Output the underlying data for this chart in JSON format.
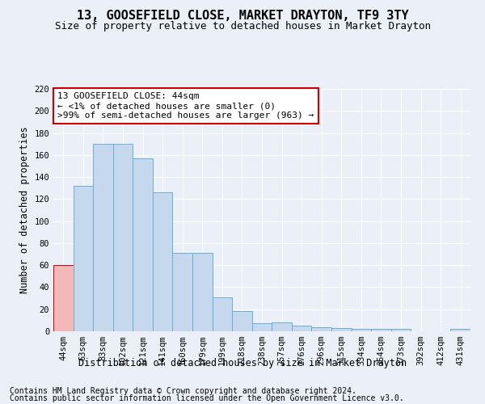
{
  "title": "13, GOOSEFIELD CLOSE, MARKET DRAYTON, TF9 3TY",
  "subtitle": "Size of property relative to detached houses in Market Drayton",
  "xlabel": "Distribution of detached houses by size in Market Drayton",
  "ylabel": "Number of detached properties",
  "categories": [
    "44sqm",
    "63sqm",
    "83sqm",
    "102sqm",
    "121sqm",
    "141sqm",
    "160sqm",
    "179sqm",
    "199sqm",
    "218sqm",
    "238sqm",
    "257sqm",
    "276sqm",
    "296sqm",
    "315sqm",
    "334sqm",
    "354sqm",
    "373sqm",
    "392sqm",
    "412sqm",
    "431sqm"
  ],
  "values": [
    60,
    132,
    170,
    170,
    157,
    126,
    71,
    71,
    31,
    18,
    7,
    8,
    5,
    4,
    3,
    2,
    2,
    2,
    0,
    0,
    2
  ],
  "bar_color": "#c5d8ed",
  "bar_edge_color": "#6aaed6",
  "highlight_index": 0,
  "highlight_color": "#f4b8b8",
  "highlight_edge_color": "#cc0000",
  "ylim": [
    0,
    220
  ],
  "yticks": [
    0,
    20,
    40,
    60,
    80,
    100,
    120,
    140,
    160,
    180,
    200,
    220
  ],
  "annotation_box_text": "13 GOOSEFIELD CLOSE: 44sqm\n← <1% of detached houses are smaller (0)\n>99% of semi-detached houses are larger (963) →",
  "footnote1": "Contains HM Land Registry data © Crown copyright and database right 2024.",
  "footnote2": "Contains public sector information licensed under the Open Government Licence v3.0.",
  "bg_color": "#eaeff8",
  "plot_bg_color": "#eaeff8",
  "grid_color": "#ffffff",
  "title_fontsize": 11,
  "subtitle_fontsize": 9,
  "annotation_fontsize": 8,
  "footnote_fontsize": 7,
  "xlabel_fontsize": 8.5,
  "ylabel_fontsize": 8.5,
  "tick_fontsize": 7.5
}
